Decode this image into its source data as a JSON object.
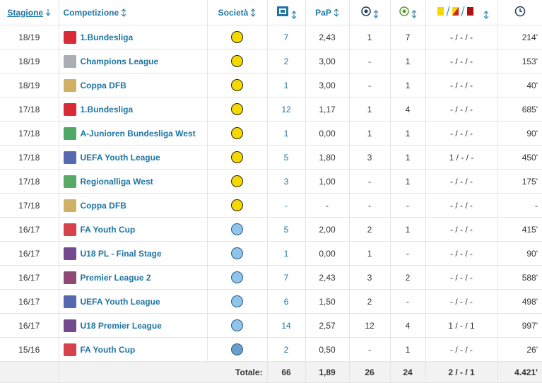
{
  "header": {
    "season": "Stagione",
    "competition": "Competizione",
    "club": "Società",
    "ppm": "PaP"
  },
  "rows": [
    [
      "18/19",
      "1.Bundesliga",
      "7",
      "2,43",
      "1",
      "7",
      "- / - / -",
      "214'"
    ],
    [
      "18/19",
      "Champions League",
      "2",
      "3,00",
      "-",
      "1",
      "- / - / -",
      "153'"
    ],
    [
      "18/19",
      "Coppa DFB",
      "1",
      "3,00",
      "-",
      "1",
      "- / - / -",
      "40'"
    ],
    [
      "17/18",
      "1.Bundesliga",
      "12",
      "1,17",
      "1",
      "4",
      "- / - / -",
      "685'"
    ],
    [
      "17/18",
      "A-Junioren Bundesliga West",
      "1",
      "0,00",
      "1",
      "1",
      "- / - / -",
      "90'"
    ],
    [
      "17/18",
      "UEFA Youth League",
      "5",
      "1,80",
      "3",
      "1",
      "1 / - / -",
      "450'"
    ],
    [
      "17/18",
      "Regionalliga West",
      "3",
      "1,00",
      "-",
      "1",
      "- / - / -",
      "175'"
    ],
    [
      "17/18",
      "Coppa DFB",
      "-",
      "-",
      "-",
      "-",
      "- / - / -",
      "-"
    ],
    [
      "16/17",
      "FA Youth Cup",
      "5",
      "2,00",
      "2",
      "1",
      "- / - / -",
      "415'"
    ],
    [
      "16/17",
      "U18 PL - Final Stage",
      "1",
      "0,00",
      "1",
      "-",
      "- / - / -",
      "90'"
    ],
    [
      "16/17",
      "Premier League 2",
      "7",
      "2,43",
      "3",
      "2",
      "- / - / -",
      "588'"
    ],
    [
      "16/17",
      "UEFA Youth League",
      "6",
      "1,50",
      "2",
      "-",
      "- / - / -",
      "498'"
    ],
    [
      "16/17",
      "U18 Premier League",
      "14",
      "2,57",
      "12",
      "4",
      "1 / - / 1",
      "997'"
    ],
    [
      "15/16",
      "FA Youth Cup",
      "2",
      "0,50",
      "-",
      "1",
      "- / - / -",
      "26'"
    ]
  ],
  "footer": {
    "label": "Totale:",
    "apps": "66",
    "ppm": "1,89",
    "goals": "26",
    "assists": "24",
    "cards": "2 / - / 1",
    "minutes": "4.421'"
  }
}
